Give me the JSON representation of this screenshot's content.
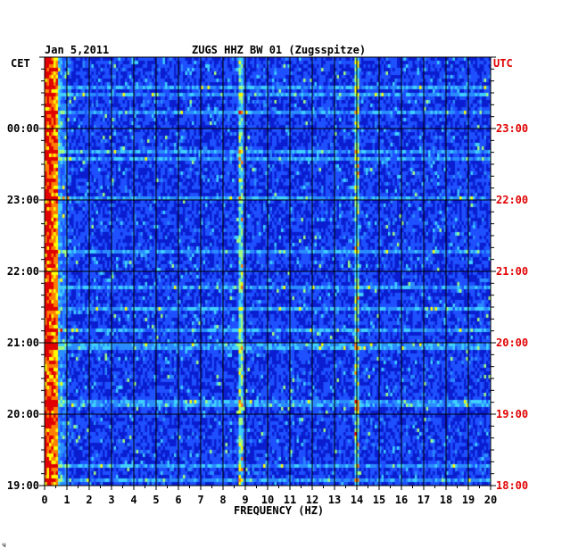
{
  "chart_data": {
    "type": "heatmap",
    "header": {
      "date": "Jan 5,2011",
      "station": "ZUGS HHZ BW 01 (Zugsspitze)"
    },
    "xlabel": "FREQUENCY (HZ)",
    "xlim": [
      0,
      20
    ],
    "x_ticks": [
      "0",
      "1",
      "2",
      "3",
      "4",
      "5",
      "6",
      "7",
      "8",
      "9",
      "10",
      "11",
      "12",
      "13",
      "14",
      "15",
      "16",
      "17",
      "18",
      "19",
      "20"
    ],
    "left_axis": {
      "label": "CET",
      "ticks": [
        "00:00",
        "23:00",
        "22:00",
        "21:00",
        "20:00",
        "19:00"
      ]
    },
    "right_axis": {
      "label": "UTC",
      "ticks": [
        "23:00",
        "22:00",
        "21:00",
        "20:00",
        "19:00",
        "18:00"
      ]
    },
    "time_range_utc": [
      "18:00",
      "23:50"
    ],
    "colormap": [
      "#0000a0",
      "#0a1ed0",
      "#1e50ff",
      "#2a8cff",
      "#40d0ff",
      "#a0ff80",
      "#ffff00",
      "#ff8000",
      "#e00000"
    ],
    "dominant_energy_band_hz": [
      0,
      0.6
    ],
    "persistent_lines_hz": [
      8.8,
      14.0
    ],
    "grid": true
  },
  "footer_mark": "ч"
}
